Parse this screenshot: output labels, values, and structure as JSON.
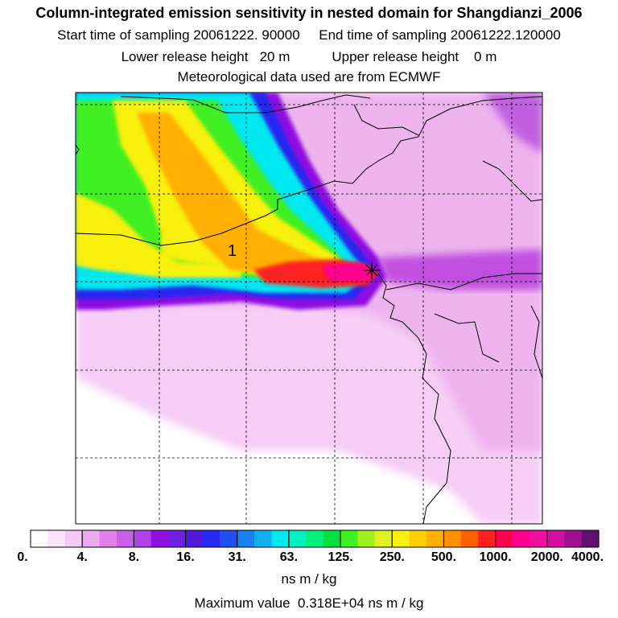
{
  "header": {
    "title": "Column-integrated emission sensitivity in nested domain for Shangdianzi_2006",
    "sampling": "Start time of sampling 20061222. 90000     End time of sampling 20061222.120000",
    "release": "Lower release height   20 m           Upper release height    0 m",
    "met": "Meteorological data used are from ECMWF"
  },
  "map": {
    "contour_label": "1",
    "station_marker": "station-cross"
  },
  "colorbar": {
    "colors": [
      "#ffffff",
      "#fbe6fb",
      "#f5c8f5",
      "#eeaaee",
      "#e080e8",
      "#c860e8",
      "#b040e8",
      "#9010e0",
      "#7020e0",
      "#5018d8",
      "#2828f0",
      "#2050f0",
      "#1880f0",
      "#10b0f0",
      "#00e8f0",
      "#00f0c0",
      "#00f080",
      "#00e040",
      "#40f020",
      "#a0f020",
      "#e0f020",
      "#f8f010",
      "#ffd000",
      "#ffb000",
      "#ff9000",
      "#ff6000",
      "#ff2020",
      "#ff0050",
      "#ff0090",
      "#f010a0",
      "#d010a0",
      "#a01090",
      "#601070"
    ],
    "labels": [
      {
        "text": "0.",
        "i": 0
      },
      {
        "text": "4.",
        "i": 3
      },
      {
        "text": "8.",
        "i": 6
      },
      {
        "text": "16.",
        "i": 9
      },
      {
        "text": "31.",
        "i": 12
      },
      {
        "text": "63.",
        "i": 15
      },
      {
        "text": "125.",
        "i": 18
      },
      {
        "text": "250.",
        "i": 21
      },
      {
        "text": "500.",
        "i": 24
      },
      {
        "text": "1000.",
        "i": 27
      },
      {
        "text": "2000.",
        "i": 30
      },
      {
        "text": "4000.",
        "i": 33
      }
    ],
    "unit": "ns m / kg"
  },
  "footer": {
    "max_value": "Maximum value  0.318E+04 ns m / kg"
  }
}
